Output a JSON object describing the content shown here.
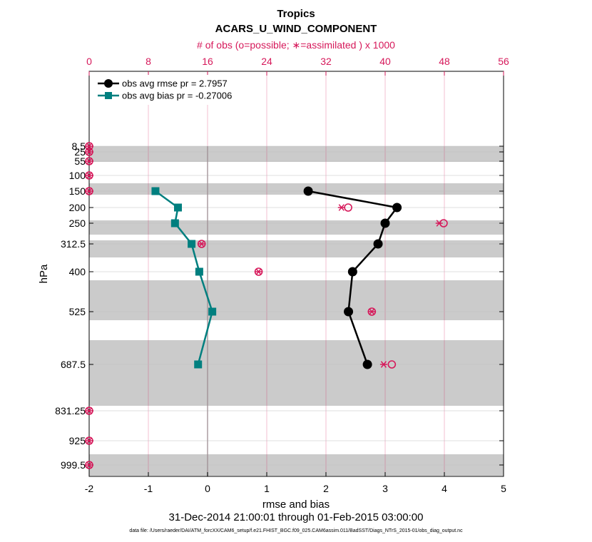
{
  "chart_data": {
    "type": "line",
    "title": "Tropics",
    "subtitle": "ACARS_U_WIND_COMPONENT",
    "top_axis_label": "# of obs (o=possible; ∗=assimilated ) x 1000",
    "xlabel": "rmse and bias",
    "ylabel": "hPa",
    "date_range": "31-Dec-2014 21:00:01 through 01-Feb-2015 03:00:00",
    "footer": "data file: /Users/raeder/DAI/ATM_forcXX/CAM6_setup/f.e21.FHIST_BGC.f09_025.CAM6assim.011/BadSST/Diags_NTrS_2015-01/obs_diag_output.nc",
    "xlim": [
      -2,
      5
    ],
    "x_ticks": [
      -2,
      -1,
      0,
      1,
      2,
      3,
      4,
      5
    ],
    "top_xlim": [
      0,
      56
    ],
    "top_ticks": [
      0,
      8,
      16,
      24,
      32,
      40,
      48,
      56
    ],
    "y_ticks": [
      8.5,
      25,
      55,
      100,
      150,
      200,
      250,
      312.5,
      400,
      525,
      687.5,
      831.25,
      925,
      999.5
    ],
    "y_tick_labels": [
      "8.5",
      "25",
      "55",
      "100",
      "150",
      "200",
      "250",
      "312.5",
      "400",
      "525",
      "687.5",
      "831.25",
      "925",
      "999.5"
    ],
    "gray_bands": [
      [
        0,
        1.1
      ],
      [
        2.6,
        3.4
      ],
      [
        5.2,
        6.2
      ],
      [
        6.6,
        7.8
      ],
      [
        9.4,
        12.2
      ],
      [
        13.6,
        18.2
      ],
      [
        21.6,
        23.1
      ]
    ],
    "series": [
      {
        "name": "obs avg rmse pr = 2.7957",
        "color": "#000000",
        "marker": "circle",
        "points": [
          [
            1.7,
            150
          ],
          [
            3.2,
            200
          ],
          [
            3.0,
            250
          ],
          [
            2.88,
            312.5
          ],
          [
            2.45,
            400
          ],
          [
            2.38,
            525
          ],
          [
            2.7,
            687.5
          ]
        ]
      },
      {
        "name": "obs avg bias pr = -0.27006",
        "color": "#007f7f",
        "marker": "square",
        "points": [
          [
            -0.88,
            150
          ],
          [
            -0.5,
            200
          ],
          [
            -0.55,
            250
          ],
          [
            -0.27,
            312.5
          ],
          [
            -0.14,
            400
          ],
          [
            0.08,
            525
          ],
          [
            -0.16,
            687.5
          ]
        ]
      }
    ],
    "obs_count": {
      "color": "#d6185a",
      "possible": [
        [
          0,
          8.5
        ],
        [
          0,
          25
        ],
        [
          0,
          55
        ],
        [
          0,
          100
        ],
        [
          0,
          150
        ],
        [
          35.0,
          200
        ],
        [
          47.9,
          250
        ],
        [
          15.2,
          312.5
        ],
        [
          22.9,
          400
        ],
        [
          38.2,
          525
        ],
        [
          40.9,
          687.5
        ],
        [
          0,
          831.25
        ],
        [
          0,
          925
        ],
        [
          0,
          999.5
        ]
      ],
      "assimilated": [
        [
          0,
          8.5
        ],
        [
          0,
          25
        ],
        [
          0,
          55
        ],
        [
          0,
          100
        ],
        [
          0,
          150
        ],
        [
          34.1,
          200
        ],
        [
          47.3,
          250
        ],
        [
          15.2,
          312.5
        ],
        [
          22.9,
          400
        ],
        [
          38.2,
          525
        ],
        [
          39.8,
          687.5
        ],
        [
          0,
          831.25
        ],
        [
          0,
          925
        ],
        [
          0,
          999.5
        ]
      ]
    }
  }
}
